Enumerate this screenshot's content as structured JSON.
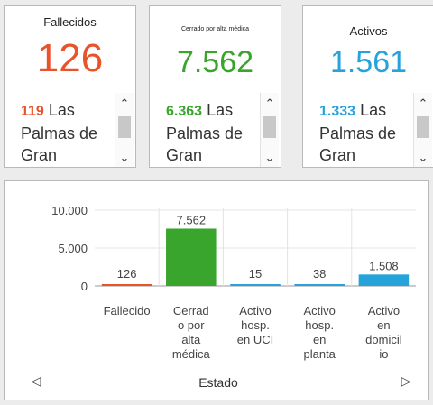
{
  "cards": [
    {
      "title": "Fallecidos",
      "value": "126",
      "color": "#e8532b",
      "list_value": "119",
      "list_label": "Las Palmas de Gran Canaria"
    },
    {
      "title": "Cerrado por alta médica",
      "value": "7.562",
      "color": "#3aa52c",
      "list_value": "6.363",
      "list_label": "Las Palmas de Gran Canaria"
    },
    {
      "title": "Activos",
      "value": "1.561",
      "color": "#27a3dc",
      "list_value": "1.333",
      "list_label": "Las Palmas de Gran Canaria"
    }
  ],
  "scroll": {
    "up": "⌃",
    "down": "⌄"
  },
  "chart_data": {
    "type": "bar",
    "categories": [
      [
        "Fallecido"
      ],
      [
        "Cerrad",
        "o por",
        "alta",
        "médica"
      ],
      [
        "Activo",
        "hosp.",
        "en UCI"
      ],
      [
        "Activo",
        "hosp.",
        "en",
        "planta"
      ],
      [
        "Activo",
        "en",
        "domicil",
        "io"
      ]
    ],
    "values": [
      126,
      7562,
      15,
      38,
      1508
    ],
    "value_labels": [
      "126",
      "7.562",
      "15",
      "38",
      "1.508"
    ],
    "colors": [
      "#e8532b",
      "#3aa52c",
      "#27a3dc",
      "#27a3dc",
      "#27a3dc"
    ],
    "ylim": [
      0,
      10000
    ],
    "yticks": [
      0,
      5000,
      10000
    ],
    "ytick_labels": [
      "0",
      "5.000",
      "10.000"
    ],
    "xlabel": "Estado",
    "grid": true
  },
  "footer": {
    "prev": "◁",
    "next": "▷"
  }
}
